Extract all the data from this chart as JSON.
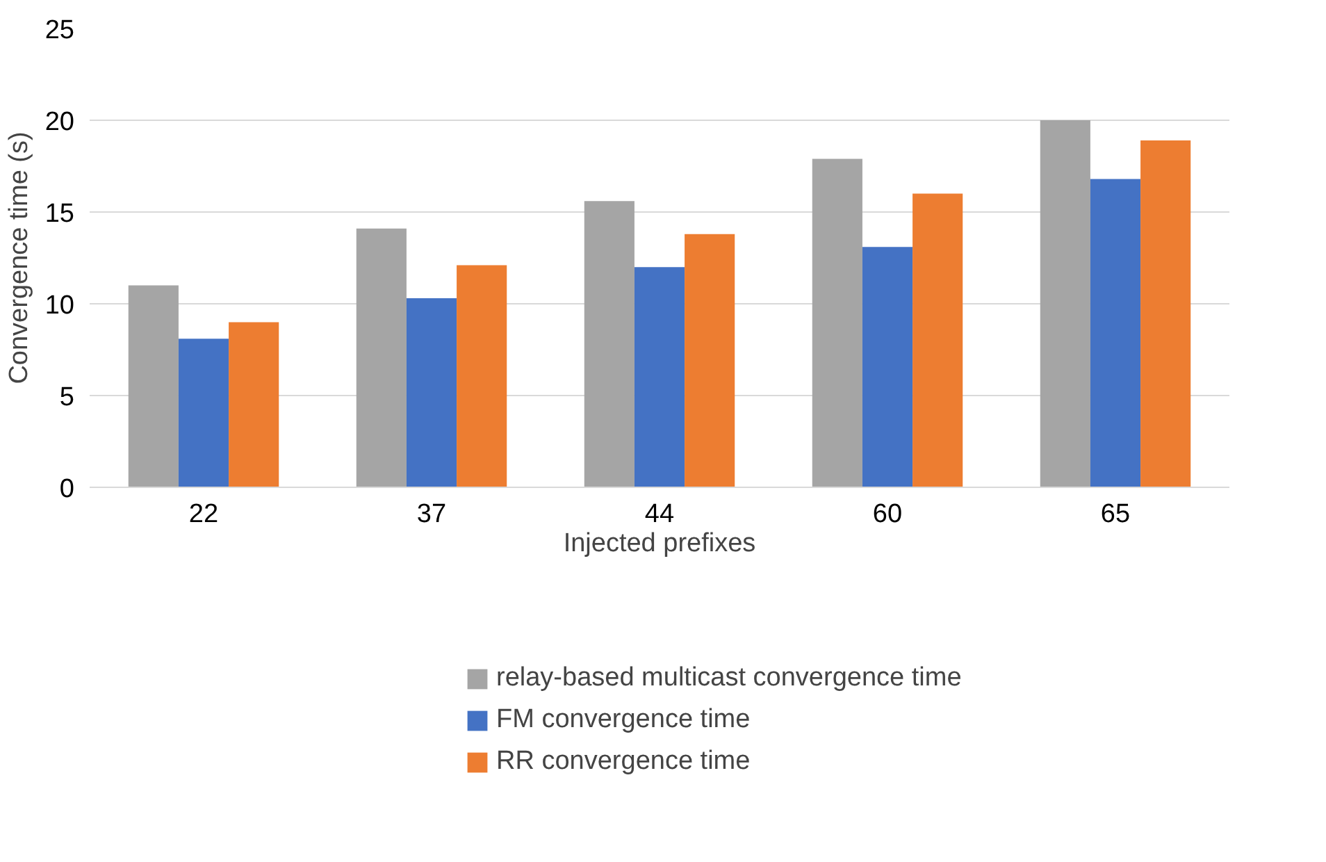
{
  "chart_data": {
    "type": "bar",
    "xlabel": "Injected prefixes",
    "ylabel": "Convergence time (s)",
    "categories": [
      "22",
      "37",
      "44",
      "60",
      "65"
    ],
    "series": [
      {
        "name": "relay-based multicast convergence time",
        "color": "#a5a5a5",
        "values": [
          11.0,
          14.1,
          15.6,
          17.9,
          20.0
        ]
      },
      {
        "name": "FM convergence time",
        "color": "#4472c4",
        "values": [
          8.1,
          10.3,
          12.0,
          13.1,
          16.8
        ]
      },
      {
        "name": "RR convergence time",
        "color": "#ed7d31",
        "values": [
          9.0,
          12.1,
          13.8,
          16.0,
          18.9
        ]
      }
    ],
    "ylim": [
      0,
      25
    ],
    "yticks": [
      0,
      5,
      10,
      15,
      20,
      25
    ],
    "grid": "y",
    "legend": "bottom"
  }
}
